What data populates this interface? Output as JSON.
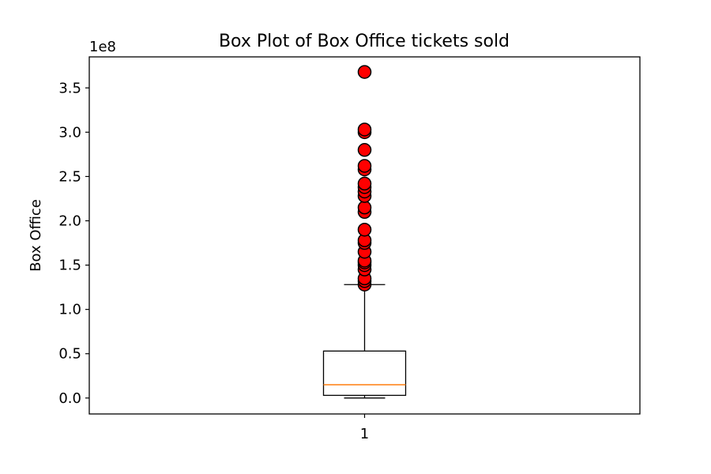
{
  "chart_data": {
    "type": "box",
    "title": "Box Plot of Box Office tickets sold",
    "xlabel": "",
    "ylabel": "Box Office",
    "offset_label": "1e8",
    "categories": [
      "1"
    ],
    "ylim": [
      -0.18,
      3.85
    ],
    "yscale_factor": 100000000,
    "yticks": [
      0.0,
      0.5,
      1.0,
      1.5,
      2.0,
      2.5,
      3.0,
      3.5
    ],
    "ytick_labels": [
      "0.0",
      "0.5",
      "1.0",
      "1.5",
      "2.0",
      "2.5",
      "3.0",
      "3.5"
    ],
    "grid": false,
    "box": {
      "whisker_low": 0.0,
      "q1": 0.03,
      "median": 0.15,
      "q3": 0.53,
      "whisker_high": 1.28
    },
    "outliers": [
      1.28,
      1.32,
      1.35,
      1.45,
      1.5,
      1.53,
      1.55,
      1.65,
      1.75,
      1.78,
      1.9,
      2.1,
      2.15,
      2.28,
      2.33,
      2.38,
      2.42,
      2.58,
      2.62,
      2.8,
      3.0,
      3.03,
      3.68
    ],
    "colors": {
      "box": "#000000",
      "median": "#ff7f0e",
      "outlier_fill": "#ff0000",
      "outlier_edge": "#000000"
    }
  }
}
